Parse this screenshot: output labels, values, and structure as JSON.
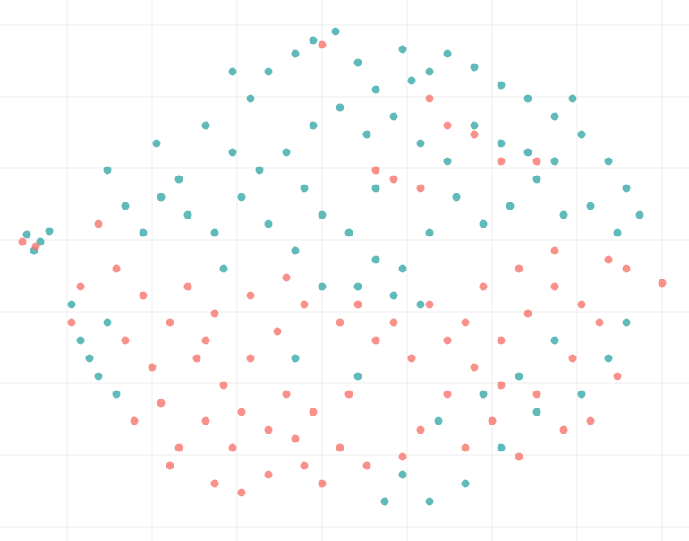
{
  "chart_data": {
    "type": "scatter",
    "xlim": [
      0,
      770
    ],
    "ylim": [
      0,
      604
    ],
    "xticks": [
      75,
      170,
      265,
      360,
      455,
      550,
      645,
      740
    ],
    "yticks": [
      16,
      96,
      176,
      256,
      336,
      416,
      496,
      576
    ],
    "grid": true,
    "series": [
      {
        "color": "#3aa9a9",
        "x": [
          30,
          45,
          55,
          38,
          120,
          140,
          175,
          200,
          230,
          260,
          280,
          300,
          330,
          350,
          375,
          400,
          420,
          450,
          480,
          500,
          530,
          560,
          590,
          620,
          650,
          680,
          700,
          715,
          690,
          660,
          630,
          600,
          570,
          540,
          510,
          480,
          450,
          420,
          390,
          360,
          330,
          300,
          270,
          240,
          210,
          180,
          160,
          290,
          320,
          350,
          380,
          410,
          440,
          470,
          500,
          530,
          560,
          590,
          620,
          640,
          360,
          400,
          440,
          470,
          420,
          340,
          250,
          100,
          110,
          90,
          130,
          120,
          80,
          450,
          480,
          520,
          560,
          430,
          600,
          650,
          680,
          700,
          620,
          580,
          540,
          490,
          400,
          330,
          460,
          260
        ],
        "values": [
          342,
          334,
          346,
          324,
          414,
          374,
          444,
          404,
          464,
          434,
          494,
          524,
          544,
          559,
          569,
          534,
          504,
          549,
          524,
          544,
          529,
          509,
          494,
          474,
          454,
          424,
          394,
          364,
          344,
          374,
          364,
          404,
          374,
          354,
          384,
          344,
          304,
          314,
          344,
          364,
          324,
          354,
          384,
          344,
          364,
          384,
          344,
          414,
          434,
          464,
          484,
          454,
          474,
          444,
          424,
          464,
          444,
          434,
          424,
          494,
          284,
          284,
          274,
          264,
          394,
          394,
          304,
          204,
          184,
          224,
          164,
          244,
          264,
          74,
          44,
          64,
          104,
          44,
          144,
          164,
          204,
          244,
          224,
          184,
          164,
          134,
          184,
          204,
          514,
          524
        ]
      },
      {
        "color": "#f8766d",
        "x": [
          25,
          40,
          160,
          190,
          220,
          250,
          270,
          230,
          200,
          260,
          300,
          320,
          350,
          380,
          410,
          360,
          300,
          280,
          310,
          340,
          380,
          420,
          460,
          500,
          530,
          560,
          590,
          620,
          650,
          670,
          640,
          600,
          550,
          500,
          470,
          450,
          520,
          580,
          630,
          660,
          180,
          170,
          210,
          240,
          280,
          320,
          400,
          440,
          540,
          580,
          620,
          680,
          130,
          110,
          90,
          80,
          140,
          150,
          190,
          240,
          440,
          470,
          420,
          530,
          500,
          560,
          600,
          480,
          360,
          230,
          330,
          390,
          480,
          520,
          560,
          700,
          740,
          690,
          270,
          340
        ],
        "values": [
          334,
          329,
          274,
          244,
          204,
          174,
          144,
          134,
          104,
          104,
          124,
          164,
          144,
          104,
          84,
          64,
          74,
          204,
          234,
          264,
          244,
          224,
          204,
          224,
          194,
          224,
          254,
          284,
          264,
          244,
          204,
          164,
          134,
          164,
          124,
          94,
          104,
          94,
          124,
          134,
          154,
          194,
          284,
          254,
          274,
          294,
          264,
          244,
          284,
          304,
          324,
          314,
          304,
          354,
          284,
          244,
          224,
          134,
          84,
          64,
          404,
          394,
          414,
          454,
          464,
          424,
          424,
          494,
          554,
          224,
          114,
          164,
          264,
          244,
          174,
          304,
          288,
          184,
          54,
          84
        ]
      }
    ]
  }
}
